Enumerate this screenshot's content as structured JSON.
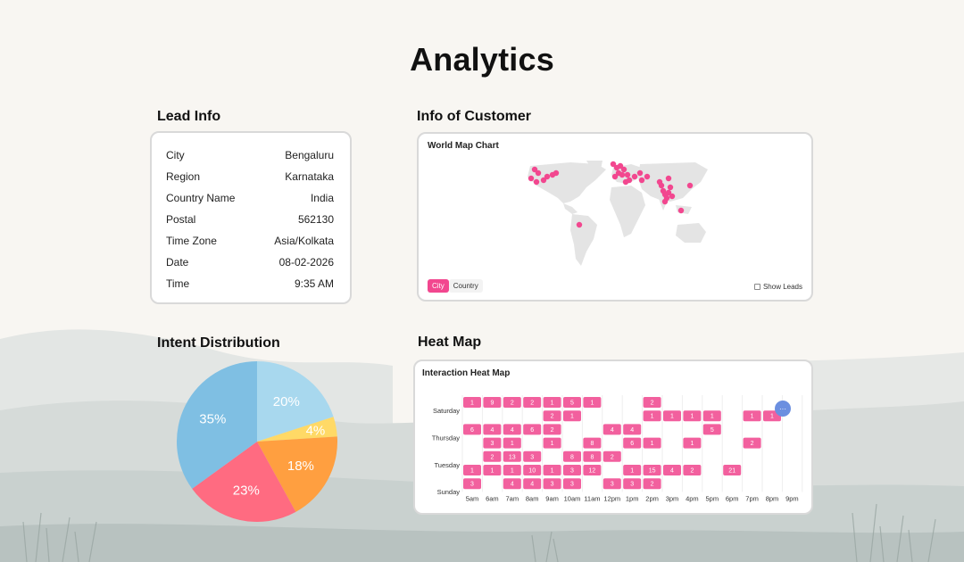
{
  "page": {
    "title": "Analytics"
  },
  "lead_info": {
    "title": "Lead Info",
    "rows": [
      {
        "label": "City",
        "value": "Bengaluru"
      },
      {
        "label": "Region",
        "value": "Karnataka"
      },
      {
        "label": "Country Name",
        "value": "India"
      },
      {
        "label": "Postal",
        "value": "562130"
      },
      {
        "label": "Time Zone",
        "value": "Asia/Kolkata"
      },
      {
        "label": "Date",
        "value": "08-02-2026"
      },
      {
        "label": "Time",
        "value": "9:35 AM"
      }
    ]
  },
  "customer_info": {
    "title": "Info of Customer",
    "card_title": "World Map Chart",
    "toggle": {
      "active": "City",
      "inactive": "Country"
    },
    "show_leads_label": "Show Leads",
    "marker_color": "#f2478f"
  },
  "intent": {
    "title": "Intent Distribution",
    "chart_data": {
      "type": "pie",
      "values": [
        20,
        4,
        18,
        23,
        35
      ],
      "labels": [
        "20%",
        "4%",
        "18%",
        "23%",
        "35%"
      ],
      "colors": [
        "#a8d8ee",
        "#ffd966",
        "#ff9f40",
        "#ff6b81",
        "#7fbfe3"
      ]
    }
  },
  "heat_map": {
    "title": "Heat Map",
    "card_title": "Interaction Heat Map",
    "chart_data": {
      "type": "heatmap",
      "x_labels": [
        "5am",
        "6am",
        "7am",
        "8am",
        "9am",
        "10am",
        "11am",
        "12pm",
        "1pm",
        "2pm",
        "3pm",
        "4pm",
        "5pm",
        "6pm",
        "7pm",
        "8pm",
        "9pm"
      ],
      "y_labels": [
        "Saturday",
        "Thursday",
        "Tuesday",
        "Sunday"
      ],
      "rows": [
        [
          "1",
          "9",
          "2",
          "2",
          "1",
          "5",
          "1",
          "",
          "",
          "2",
          "",
          "",
          "",
          "",
          "",
          "",
          ""
        ],
        [
          "",
          "",
          "",
          "",
          "2",
          "1",
          "",
          "",
          "",
          "1",
          "1",
          "1",
          "1",
          "",
          "1",
          "1",
          ""
        ],
        [
          "6",
          "4",
          "4",
          "6",
          "2",
          "",
          "",
          "4",
          "4",
          "",
          "",
          "",
          "5",
          "",
          "",
          "",
          ""
        ],
        [
          "",
          "3",
          "1",
          "",
          "1",
          "",
          "8",
          "",
          "6",
          "1",
          "",
          "1",
          "",
          "",
          "2",
          "",
          ""
        ],
        [
          "",
          "2",
          "13",
          "3",
          "",
          "8",
          "8",
          "2",
          "",
          "",
          "",
          "",
          "",
          "",
          "",
          "",
          ""
        ],
        [
          "1",
          "1",
          "1",
          "10",
          "1",
          "3",
          "12",
          "",
          "1",
          "15",
          "4",
          "2",
          "",
          "21",
          "",
          "",
          ""
        ],
        [
          "3",
          "",
          "4",
          "4",
          "3",
          "3",
          "",
          "3",
          "3",
          "2",
          "",
          "",
          "",
          "",
          "",
          "",
          ""
        ]
      ],
      "cell_color": "#f2609e",
      "marker_label": "···"
    }
  }
}
